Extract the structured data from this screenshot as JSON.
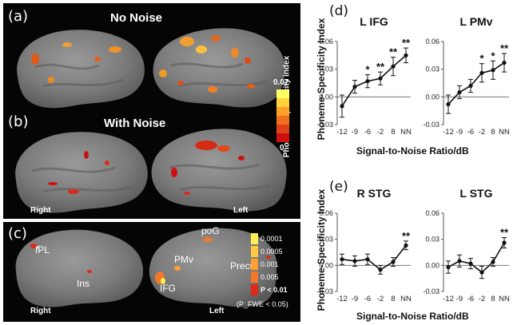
{
  "panels": {
    "a": {
      "label": "(a)",
      "title": "No Noise"
    },
    "b": {
      "label": "(b)",
      "title": "With Noise"
    },
    "c": {
      "label": "(c)"
    },
    "d": {
      "label": "(d)"
    },
    "e": {
      "label": "(e)"
    }
  },
  "brain_labels": {
    "b_right": "Right",
    "b_left": "Left",
    "c_right": "Right",
    "c_left": "Left",
    "regions": [
      "IPL",
      "Ins",
      "poG",
      "PMv",
      "Precu",
      "IFG"
    ]
  },
  "colorbar_index": {
    "title": "Phoneme-Specificity index",
    "max": "0.07",
    "min": "0",
    "colors": [
      "#ffff66",
      "#ffd23c",
      "#ffa028",
      "#f07020",
      "#e04018",
      "#cc1010"
    ]
  },
  "colorbar_p": {
    "levels": [
      "0.0001",
      "0.0005",
      "0.001",
      "0.005"
    ],
    "last": "P < 0.01",
    "note": "(P_FWE < 0.05)",
    "colors": [
      "#ffee55",
      "#ffc840",
      "#ffa030",
      "#f07828",
      "#dd2a1a"
    ]
  },
  "chart_data": [
    {
      "type": "line",
      "title": "L IFG",
      "categories": [
        "-12",
        "-9",
        "-6",
        "-2",
        "8",
        "NN"
      ],
      "values": [
        -0.01,
        0.011,
        0.017,
        0.02,
        0.033,
        0.045
      ],
      "errors": [
        0.012,
        0.007,
        0.007,
        0.007,
        0.01,
        0.008
      ],
      "significance": [
        "",
        "",
        "*",
        "**",
        "**",
        "**"
      ],
      "ylim": [
        -0.03,
        0.06
      ],
      "yticks": [
        "0.06",
        "0.03",
        "0.00",
        "-0.03"
      ],
      "ylabel": "Phoneme-Specificity Index",
      "xlabel": "Signal-to-Noise Ratio/dB"
    },
    {
      "type": "line",
      "title": "L PMv",
      "categories": [
        "-12",
        "-9",
        "-6",
        "-2",
        "8",
        "NN"
      ],
      "values": [
        -0.008,
        0.005,
        0.012,
        0.026,
        0.029,
        0.037
      ],
      "errors": [
        0.01,
        0.007,
        0.007,
        0.01,
        0.01,
        0.01
      ],
      "significance": [
        "",
        "",
        "",
        "*",
        "*",
        "**"
      ],
      "ylim": [
        -0.03,
        0.06
      ],
      "yticks": [
        "0.06",
        "0.03",
        "0.00",
        "-0.03"
      ]
    },
    {
      "type": "line",
      "title": "R STG",
      "categories": [
        "-12",
        "-9",
        "-6",
        "-2",
        "8",
        "NN"
      ],
      "values": [
        0.007,
        0.005,
        0.007,
        -0.005,
        0.004,
        0.023
      ],
      "errors": [
        0.006,
        0.006,
        0.006,
        0.005,
        0.005,
        0.005
      ],
      "significance": [
        "",
        "",
        "",
        "",
        "",
        "**"
      ],
      "ylim": [
        -0.03,
        0.06
      ],
      "yticks": [
        "0.06",
        "0.03",
        "0.00",
        "-0.03"
      ],
      "ylabel": "Phoneme-Specificity Index",
      "xlabel": "Signal-to-Noise Ratio/dB"
    },
    {
      "type": "line",
      "title": "L STG",
      "categories": [
        "-12",
        "-9",
        "-6",
        "-2",
        "8",
        "NN"
      ],
      "values": [
        -0.002,
        0.005,
        0.002,
        -0.008,
        0.004,
        0.026
      ],
      "errors": [
        0.007,
        0.007,
        0.006,
        0.007,
        0.005,
        0.006
      ],
      "significance": [
        "",
        "",
        "",
        "",
        "",
        "**"
      ],
      "ylim": [
        -0.03,
        0.06
      ],
      "yticks": [
        "0.06",
        "0.03",
        "0.00",
        "-0.03"
      ]
    }
  ]
}
